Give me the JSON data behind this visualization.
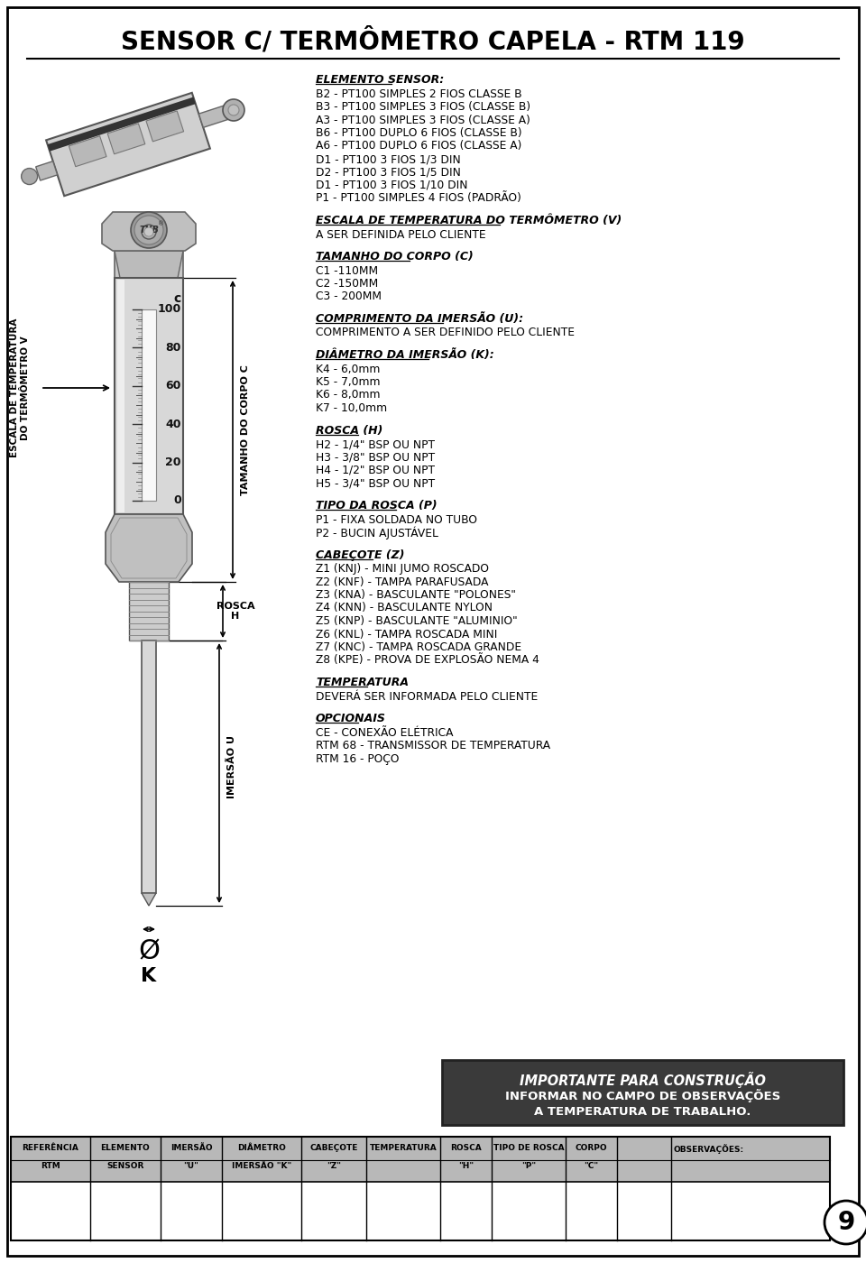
{
  "title": "SENSOR C/ TERMÔMETRO CAPELA - RTM 119",
  "bg_color": "#ffffff",
  "right_sections": [
    {
      "header": "ELEMENTO SENSOR:",
      "lines": [
        "B2 - PT100 SIMPLES 2 FIOS CLASSE B",
        "B3 - PT100 SIMPLES 3 FIOS (CLASSE B)",
        "A3 - PT100 SIMPLES 3 FIOS (CLASSE A)",
        "B6 - PT100 DUPLO 6 FIOS (CLASSE B)",
        "A6 - PT100 DUPLO 6 FIOS (CLASSE A)",
        "D1 - PT100 3 FIOS 1/3 DIN",
        "D2 - PT100 3 FIOS 1/5 DIN",
        "D1 - PT100 3 FIOS 1/10 DIN",
        "P1 - PT100 SIMPLES 4 FIOS (PADRÃO)"
      ]
    },
    {
      "header": "ESCALA DE TEMPERATURA DO TERMÔMETRO (V)",
      "lines": [
        "A SER DEFINIDA PELO CLIENTE"
      ]
    },
    {
      "header": "TAMANHO DO CORPO (C)",
      "lines": [
        "C1 -110MM",
        "C2 -150MM",
        "C3 - 200MM"
      ]
    },
    {
      "header": "COMPRIMENTO DA IMERSÃO (U):",
      "lines": [
        "COMPRIMENTO A SER DEFINIDO PELO CLIENTE"
      ]
    },
    {
      "header": "DIÂMETRO DA IMERSÃO (K):",
      "lines": [
        "K4 - 6,0mm",
        "K5 - 7,0mm",
        "K6 - 8,0mm",
        "K7 - 10,0mm"
      ]
    },
    {
      "header": "ROSCA (H)",
      "lines": [
        "H2 - 1/4\" BSP OU NPT",
        "H3 - 3/8\" BSP OU NPT",
        "H4 - 1/2\" BSP OU NPT",
        "H5 - 3/4\" BSP OU NPT"
      ]
    },
    {
      "header": "TIPO DA ROSCA (P)",
      "lines": [
        "P1 - FIXA SOLDADA NO TUBO",
        "P2 - BUCIN AJUSTÁVEL"
      ]
    },
    {
      "header": "CABEÇOTE (Z)",
      "lines": [
        "Z1 (KNJ) - MINI JUMO ROSCADO",
        "Z2 (KNF) - TAMPA PARAFUSADA",
        "Z3 (KNA) - BASCULANTE \"POLONES\"",
        "Z4 (KNN) - BASCULANTE NYLON",
        "Z5 (KNP) - BASCULANTE \"ALUMINIO\"",
        "Z6 (KNL) - TAMPA ROSCADA MINI",
        "Z7 (KNC) - TAMPA ROSCADA GRANDE",
        "Z8 (KPE) - PROVA DE EXPLOSÃO NEMA 4"
      ]
    },
    {
      "header": "TEMPERATURA",
      "lines": [
        "DEVERÁ SER INFORMADA PELO CLIENTE"
      ]
    },
    {
      "header": "OPCIONAIS",
      "lines": [
        "CE - CONEXÃO ELÉTRICA",
        "RTM 68 - TRANSMISSOR DE TEMPERATURA",
        "RTM 16 - POÇO"
      ]
    }
  ],
  "important_box": {
    "line1": "IMPORTANTE PARA CONSTRUÇÃO",
    "line2": "INFORMAR NO CAMPO DE OBSERVAÇÕES",
    "line3": "A TEMPERATURA DE TRABALHO."
  },
  "table_headers_row1": [
    "REFERÊNCIA",
    "ELEMENTO",
    "IMERSÃO",
    "DIÂMETRO",
    "CABEÇOTE",
    "TEMPERATURA",
    "ROSCA",
    "TIPO DE ROSCA",
    "CORPO",
    "",
    "OBSERVAÇÕES:"
  ],
  "table_headers_row2": [
    "RTM",
    "SENSOR",
    "\"U\"",
    "IMERSÃO \"K\"",
    "\"Z\"",
    "",
    "\"H\"",
    "\"P\"",
    "\"C\"",
    "",
    ""
  ],
  "page_number": "9"
}
